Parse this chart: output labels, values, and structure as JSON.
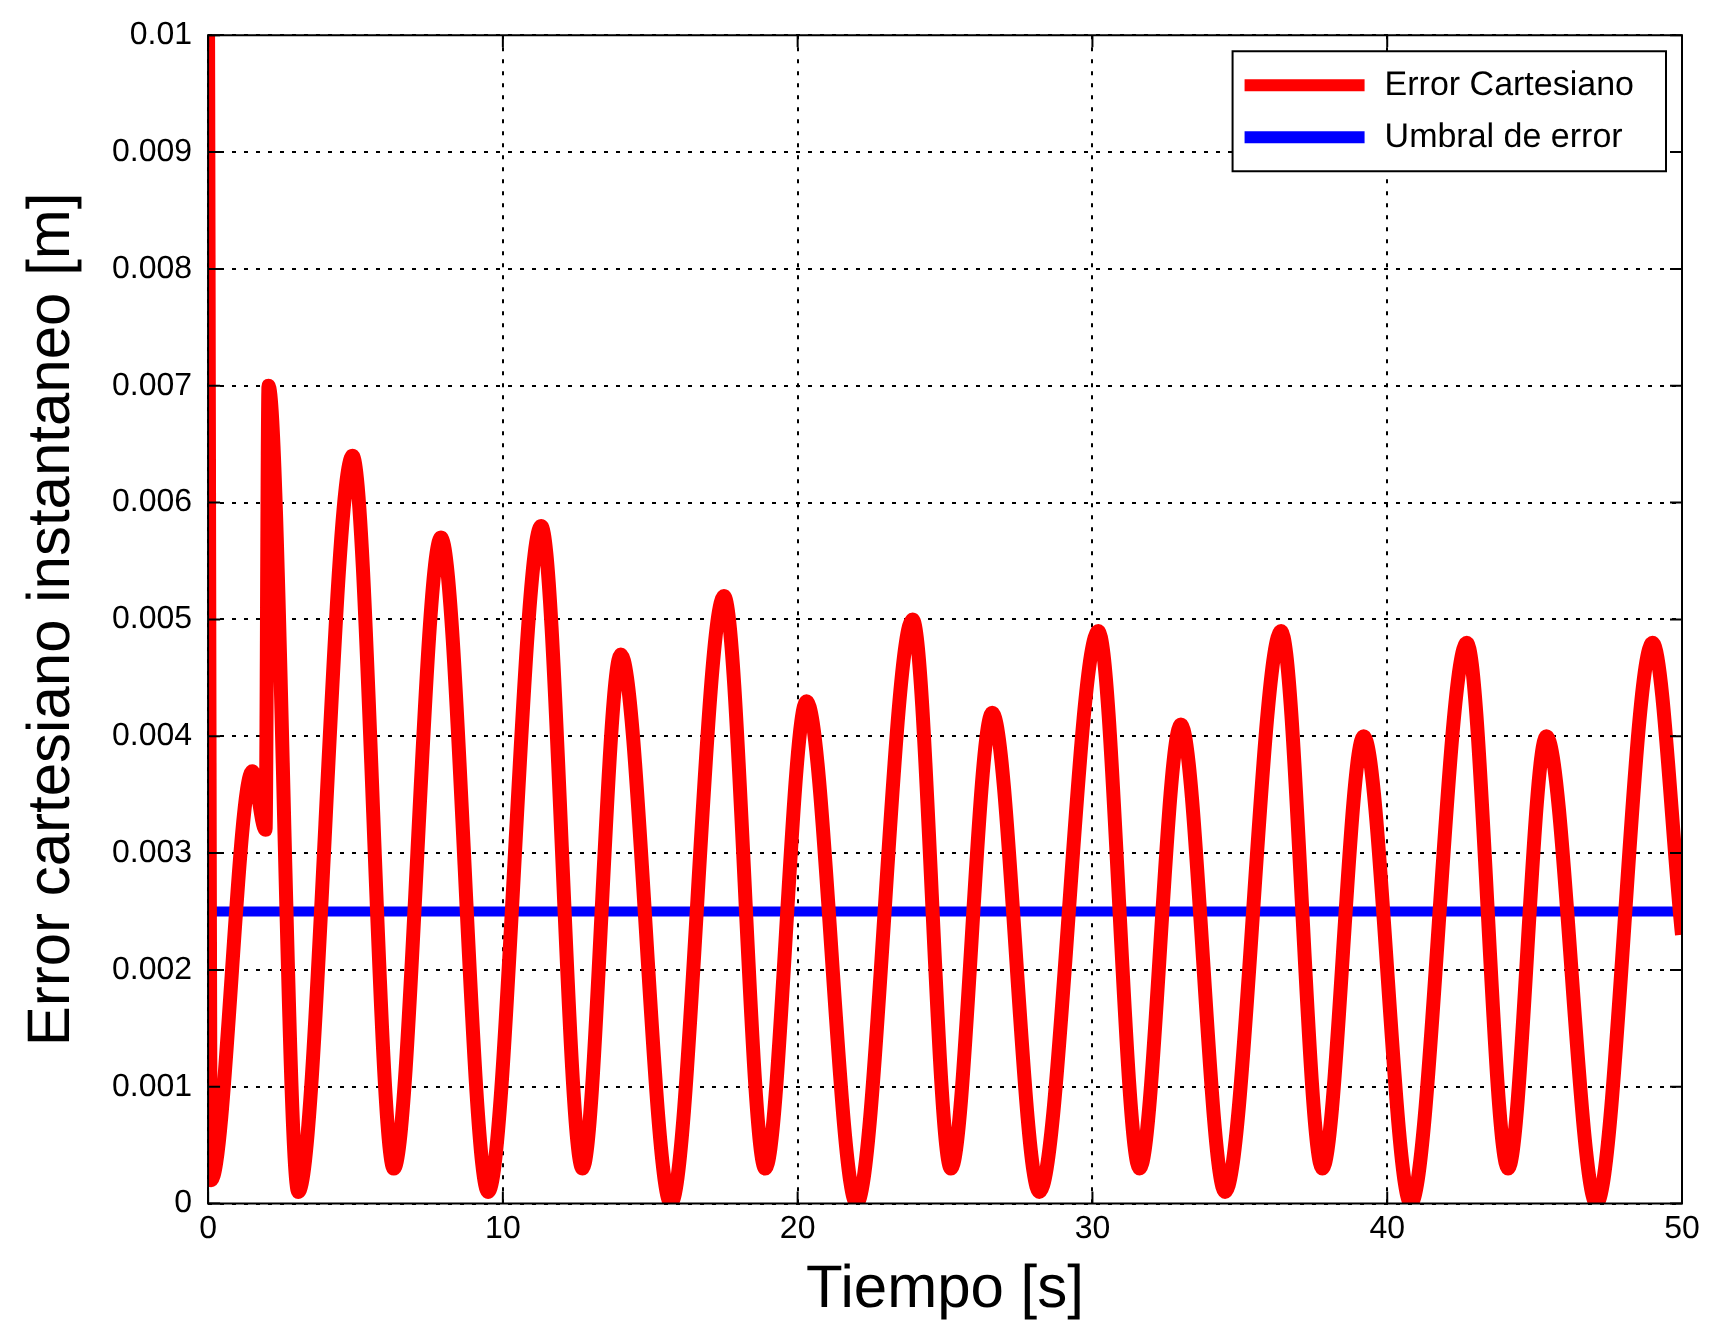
{
  "chart_data": {
    "type": "line",
    "xlabel": "Tiempo [s]",
    "ylabel": "Error cartesiano instantaneo [m]",
    "xlim": [
      0,
      50
    ],
    "xticks": [
      0,
      10,
      20,
      30,
      40,
      50
    ],
    "ylim": [
      0,
      0.01
    ],
    "yticks": [
      0,
      0.001,
      0.002,
      0.003,
      0.004,
      0.005,
      0.006,
      0.007,
      0.008,
      0.009,
      0.01
    ],
    "grid": true,
    "legend": "top right",
    "line_style": "solid",
    "marker": "none",
    "series": [
      {
        "name": "Error Cartesiano",
        "color": "#ff0000",
        "x": [
          0,
          0.1,
          1.5,
          1.95,
          2.05,
          3.06,
          4.9,
          6.3,
          7.9,
          9.5,
          11.3,
          12.7,
          14.0,
          15.7,
          17.5,
          18.9,
          20.3,
          22.0,
          23.9,
          25.2,
          26.6,
          28.2,
          30.2,
          31.6,
          33.0,
          34.5,
          36.4,
          37.8,
          39.2,
          40.8,
          42.7,
          44.1,
          45.4,
          47.1,
          49.0,
          50
        ],
        "values": [
          0.01,
          0.0002,
          0.0037,
          0.0032,
          0.007,
          0.0001,
          0.0064,
          0.0003,
          0.0057,
          0.0001,
          0.0058,
          0.0003,
          0.0047,
          0,
          0.0052,
          0.0003,
          0.0043,
          0,
          0.005,
          0.0003,
          0.0042,
          0.0001,
          0.0049,
          0.0003,
          0.0041,
          0.0001,
          0.0049,
          0.0003,
          0.004,
          0,
          0.0048,
          0.0003,
          0.004,
          0,
          0.0048,
          0.0023
        ]
      }
    ],
    "ref_lines": [
      {
        "axis": "y",
        "value": 0.0025,
        "label": "Umbral de error",
        "color": "#0000ff"
      }
    ]
  }
}
